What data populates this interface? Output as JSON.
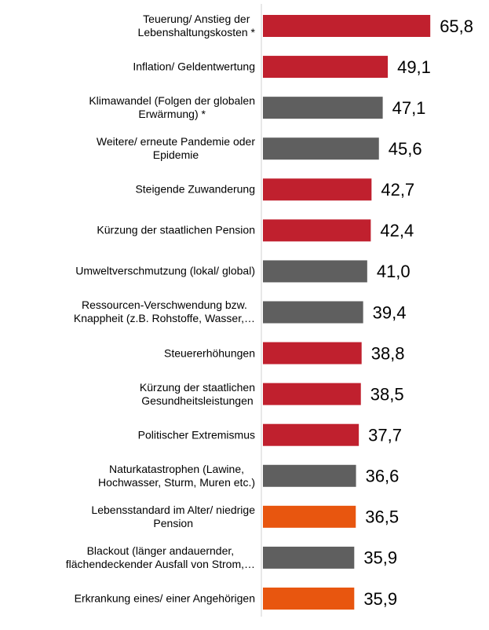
{
  "chart_data": {
    "type": "bar",
    "orientation": "horizontal",
    "categories": [
      "Teuerung/ Anstieg der\nLebenshaltungskosten *",
      "Inflation/ Geldentwertung",
      "Klimawandel (Folgen der globalen\nErwärmung) *",
      "Weitere/ erneute Pandemie oder\nEpidemie",
      "Steigende Zuwanderung",
      "Kürzung der staatlichen Pension",
      "Umweltverschmutzung (lokal/ global)",
      "Ressourcen-Verschwendung bzw.\nKnappheit (z.B. Rohstoffe, Wasser,…",
      "Steuererhöhungen",
      "Kürzung der staatlichen\nGesundheitsleistungen",
      "Politischer Extremismus",
      "Naturkatastrophen (Lawine,\nHochwasser, Sturm, Muren etc.)",
      "Lebensstandard im Alter/ niedrige\nPension",
      "Blackout (länger andauernder,\nflächendeckender Ausfall von Strom,…",
      "Erkrankung eines/ einer Angehörigen"
    ],
    "values": [
      65.8,
      49.1,
      47.1,
      45.6,
      42.7,
      42.4,
      41.0,
      39.4,
      38.8,
      38.5,
      37.7,
      36.6,
      36.5,
      35.9,
      35.9
    ],
    "value_labels": [
      "65,8",
      "49,1",
      "47,1",
      "45,6",
      "42,7",
      "42,4",
      "41,0",
      "39,4",
      "38,8",
      "38,5",
      "37,7",
      "36,6",
      "36,5",
      "35,9",
      "35,9"
    ],
    "colors": [
      "#c0202e",
      "#c0202e",
      "#5f5f5f",
      "#5f5f5f",
      "#c0202e",
      "#c0202e",
      "#5f5f5f",
      "#5f5f5f",
      "#c0202e",
      "#c0202e",
      "#c0202e",
      "#5f5f5f",
      "#e8560f",
      "#5f5f5f",
      "#e8560f"
    ],
    "xlim": [
      0,
      100
    ]
  }
}
